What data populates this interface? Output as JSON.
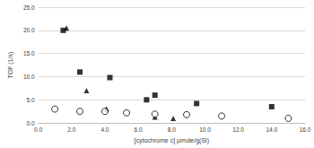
{
  "chart_data": {
    "type": "scatter",
    "xlabel": "[cytochrome c] µmole/g(Si)",
    "ylabel": "TOF (1/s)",
    "series": [
      {
        "color": "#000000",
        "marker": "square",
        "x": [
          1.5,
          2.5,
          4.3,
          6.5,
          7.0,
          9.5,
          14.0
        ],
        "values": [
          20.0,
          11.0,
          9.8,
          5.0,
          6.0,
          4.2,
          3.5
        ]
      },
      {
        "color": "#000000",
        "marker": "triangle",
        "x": [
          1.7,
          2.9,
          4.1,
          7.0,
          8.1
        ],
        "values": [
          20.5,
          7.0,
          3.0,
          1.3,
          1.0
        ]
      },
      {
        "color": "#000000",
        "marker": "circle_open",
        "x": [
          1.0,
          2.5,
          4.0,
          5.3,
          7.0,
          8.9,
          11.0,
          15.0
        ],
        "values": [
          3.0,
          2.5,
          2.5,
          2.2,
          1.9,
          1.8,
          1.5,
          1.0
        ]
      }
    ],
    "xlim": [
      0,
      16
    ],
    "xticks": [
      {
        "value": 0,
        "label": "0.0"
      },
      {
        "value": 2,
        "label": "2.0"
      },
      {
        "value": 4,
        "label": "4.0"
      },
      {
        "value": 6,
        "label": "6.0"
      },
      {
        "value": 8,
        "label": "8.0"
      },
      {
        "value": 10,
        "label": "10.0"
      },
      {
        "value": 12,
        "label": "12.0"
      },
      {
        "value": 14,
        "label": "14.0"
      },
      {
        "value": 16,
        "label": "16.0"
      }
    ],
    "ylim": [
      0,
      25
    ],
    "yticks": [
      {
        "value": 0,
        "label": "0.0"
      },
      {
        "value": 5,
        "label": "5.0"
      },
      {
        "value": 10,
        "label": "10.0"
      },
      {
        "value": 15,
        "label": "15.0"
      },
      {
        "value": 20,
        "label": "20.0"
      },
      {
        "value": 25,
        "label": "25.0"
      }
    ],
    "grid": true
  }
}
